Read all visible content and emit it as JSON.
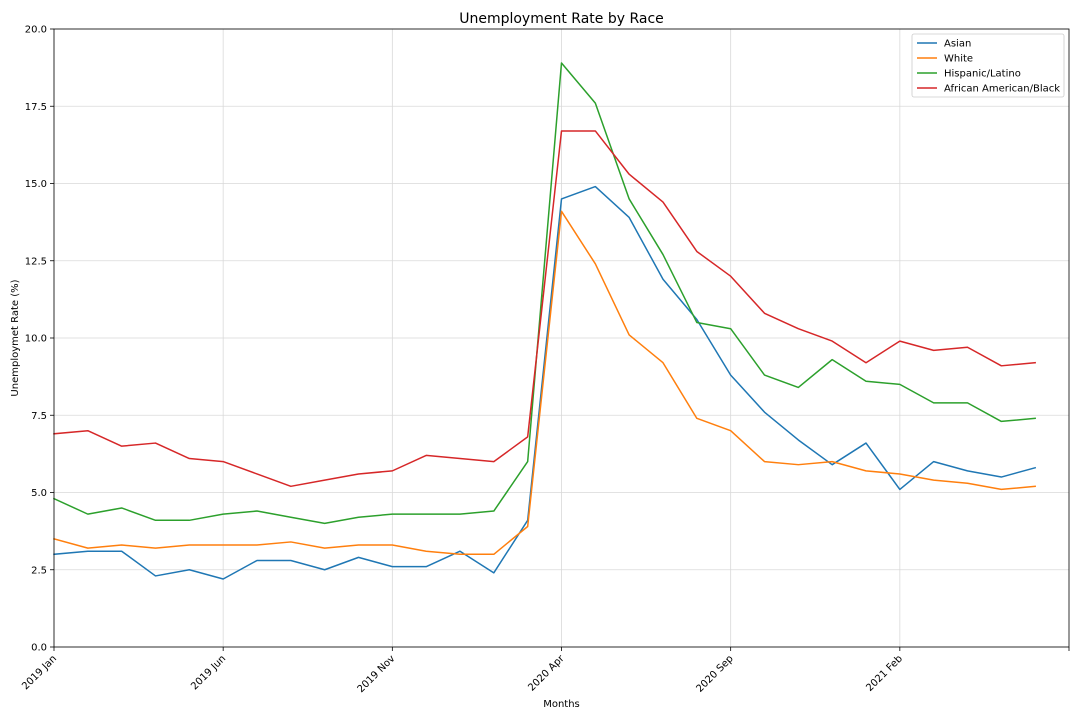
{
  "chart_data": {
    "type": "line",
    "title": "Unemployment Rate by Race",
    "xlabel": "Months",
    "ylabel": "Unemploymet Rate (%)",
    "x": [
      "2019 Jan",
      "2019 Feb",
      "2019 Mar",
      "2019 Apr",
      "2019 May",
      "2019 Jun",
      "2019 Jul",
      "2019 Aug",
      "2019 Sep",
      "2019 Oct",
      "2019 Nov",
      "2019 Dec",
      "2020 Jan",
      "2020 Feb",
      "2020 Mar",
      "2020 Apr",
      "2020 May",
      "2020 Jun",
      "2020 Jul",
      "2020 Aug",
      "2020 Sep",
      "2020 Oct",
      "2020 Nov",
      "2020 Dec",
      "2021 Jan",
      "2021 Feb",
      "2021 Mar",
      "2021 Apr",
      "2021 May",
      "2021 Jun"
    ],
    "x_tick_labels": [
      "2019 Jan",
      "2019 Jun",
      "2019 Nov",
      "2020 Apr",
      "2020 Sep",
      "2021 Feb"
    ],
    "ylim": [
      0,
      20
    ],
    "y_ticks": [
      "0.0",
      "2.5",
      "5.0",
      "7.5",
      "10.0",
      "12.5",
      "15.0",
      "17.5",
      "20.0"
    ],
    "grid": true,
    "legend_position": "top-right",
    "series": [
      {
        "name": "Asian",
        "color": "#1f77b4",
        "values": [
          3.0,
          3.1,
          3.1,
          2.3,
          2.5,
          2.2,
          2.8,
          2.8,
          2.5,
          2.9,
          2.6,
          2.6,
          3.1,
          2.4,
          4.1,
          14.5,
          14.9,
          13.9,
          11.9,
          10.6,
          8.8,
          7.6,
          6.7,
          5.9,
          6.6,
          5.1,
          6.0,
          5.7,
          5.5,
          5.8
        ]
      },
      {
        "name": "White",
        "color": "#ff7f0e",
        "values": [
          3.5,
          3.2,
          3.3,
          3.2,
          3.3,
          3.3,
          3.3,
          3.4,
          3.2,
          3.3,
          3.3,
          3.1,
          3.0,
          3.0,
          3.9,
          14.1,
          12.4,
          10.1,
          9.2,
          7.4,
          7.0,
          6.0,
          5.9,
          6.0,
          5.7,
          5.6,
          5.4,
          5.3,
          5.1,
          5.2
        ]
      },
      {
        "name": "Hispanic/Latino",
        "color": "#2ca02c",
        "values": [
          4.8,
          4.3,
          4.5,
          4.1,
          4.1,
          4.3,
          4.4,
          4.2,
          4.0,
          4.2,
          4.3,
          4.3,
          4.3,
          4.4,
          6.0,
          18.9,
          17.6,
          14.5,
          12.7,
          10.5,
          10.3,
          8.8,
          8.4,
          9.3,
          8.6,
          8.5,
          7.9,
          7.9,
          7.3,
          7.4
        ]
      },
      {
        "name": "African American/Black",
        "color": "#d62728",
        "values": [
          6.9,
          7.0,
          6.5,
          6.6,
          6.1,
          6.0,
          5.6,
          5.2,
          5.4,
          5.6,
          5.7,
          6.2,
          6.1,
          6.0,
          6.8,
          16.7,
          16.7,
          15.3,
          14.4,
          12.8,
          12.0,
          10.8,
          10.3,
          9.9,
          9.2,
          9.9,
          9.6,
          9.7,
          9.1,
          9.2
        ]
      }
    ]
  }
}
